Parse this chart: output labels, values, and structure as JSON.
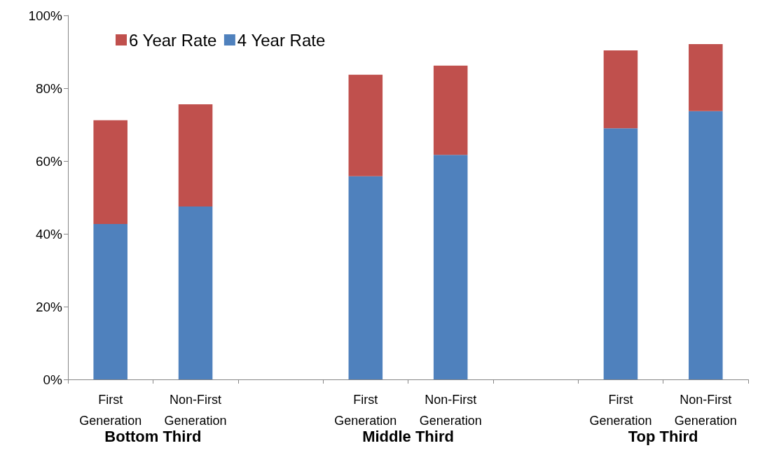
{
  "chart_data": {
    "type": "bar",
    "stacked": true,
    "categories": [
      "First Generation",
      "Non-First Generation",
      null,
      "First Generation",
      "Non-First Generation",
      null,
      "First Generation",
      "Non-First Generation"
    ],
    "series": [
      {
        "name": "4 Year Rate",
        "color": "#4f81bd",
        "values": [
          42.7,
          47.5,
          null,
          55.8,
          61.7,
          null,
          69.0,
          73.7
        ]
      },
      {
        "name": "6 Year Rate",
        "color": "#c0504d",
        "values": [
          28.5,
          28.1,
          null,
          27.9,
          24.5,
          null,
          21.4,
          18.4
        ]
      }
    ],
    "ylim": [
      0,
      100
    ],
    "yticks": [
      {
        "value": 0,
        "label": "0%"
      },
      {
        "value": 20,
        "label": "20%"
      },
      {
        "value": 40,
        "label": "40%"
      },
      {
        "value": 60,
        "label": "60%"
      },
      {
        "value": 80,
        "label": "80%"
      },
      {
        "value": 100,
        "label": "100%"
      }
    ],
    "grid": false,
    "legend": "top left",
    "annotations": [
      "Bottom Third",
      "Middle Third",
      "Top Third"
    ]
  }
}
